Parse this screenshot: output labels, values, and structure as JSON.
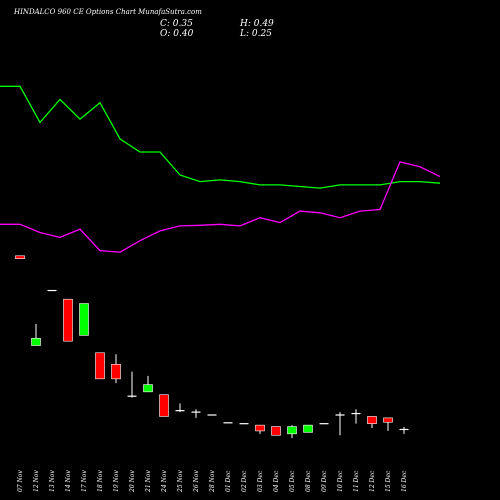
{
  "chart_data": {
    "type": "candlestick",
    "title": "HINDALCO 960 CE Options Chart MunafaSutra.com",
    "stats": {
      "C": "C: 0.35",
      "O": "O: 0.40",
      "H": "H: 0.49",
      "L": "L: 0.25"
    },
    "dates": [
      "07 Nov",
      "12 Nov",
      "13 Nov",
      "14 Nov",
      "17 Nov",
      "18 Nov",
      "19 Nov",
      "20 Nov",
      "21 Nov",
      "24 Nov",
      "25 Nov",
      "26 Nov",
      "28 Nov",
      "01 Dec",
      "02 Dec",
      "03 Dec",
      "04 Dec",
      "05 Dec",
      "08 Dec",
      "09 Dec",
      "10 Dec",
      "11 Dec",
      "12 Dec",
      "15 Dec",
      "16 Dec"
    ],
    "candles": [
      {
        "o": 6.4,
        "h": 6.4,
        "l": 6.3,
        "c": 6.3,
        "color": "red"
      },
      {
        "o": 3.3,
        "h": 4.05,
        "l": 3.3,
        "c": 3.55,
        "color": "green"
      },
      {
        "o": 5.2,
        "h": 5.2,
        "l": 5.2,
        "c": 5.2,
        "color": "green"
      },
      {
        "o": 4.9,
        "h": 4.9,
        "l": 3.45,
        "c": 3.45,
        "color": "red"
      },
      {
        "o": 3.65,
        "h": 4.75,
        "l": 3.65,
        "c": 4.75,
        "color": "green"
      },
      {
        "o": 3.05,
        "h": 3.05,
        "l": 2.15,
        "c": 2.15,
        "color": "red"
      },
      {
        "o": 2.65,
        "h": 3.0,
        "l": 2.0,
        "c": 2.15,
        "color": "red"
      },
      {
        "o": 1.55,
        "h": 2.4,
        "l": 1.5,
        "c": 1.55,
        "color": "red"
      },
      {
        "o": 1.7,
        "h": 2.25,
        "l": 1.7,
        "c": 1.95,
        "color": "green"
      },
      {
        "o": 1.6,
        "h": 1.6,
        "l": 0.85,
        "c": 0.85,
        "color": "red"
      },
      {
        "o": 1.05,
        "h": 1.3,
        "l": 1.0,
        "c": 1.05,
        "color": "red"
      },
      {
        "o": 1.0,
        "h": 1.1,
        "l": 0.8,
        "c": 1.0,
        "color": "green"
      },
      {
        "o": 0.9,
        "h": 0.9,
        "l": 0.9,
        "c": 0.9,
        "color": "green"
      },
      {
        "o": 0.63,
        "h": 0.63,
        "l": 0.63,
        "c": 0.63,
        "color": "green"
      },
      {
        "o": 0.6,
        "h": 0.6,
        "l": 0.6,
        "c": 0.6,
        "color": "green"
      },
      {
        "o": 0.55,
        "h": 0.55,
        "l": 0.25,
        "c": 0.35,
        "color": "red"
      },
      {
        "o": 0.5,
        "h": 0.5,
        "l": 0.2,
        "c": 0.2,
        "color": "red"
      },
      {
        "o": 0.25,
        "h": 0.55,
        "l": 0.1,
        "c": 0.5,
        "color": "green"
      },
      {
        "o": 0.3,
        "h": 0.55,
        "l": 0.3,
        "c": 0.55,
        "color": "green"
      },
      {
        "o": 0.6,
        "h": 0.6,
        "l": 0.6,
        "c": 0.6,
        "color": "green"
      },
      {
        "o": 0.9,
        "h": 1.0,
        "l": 0.2,
        "c": 0.9,
        "color": "green"
      },
      {
        "o": 0.95,
        "h": 1.1,
        "l": 0.6,
        "c": 0.95,
        "color": "green"
      },
      {
        "o": 0.85,
        "h": 0.85,
        "l": 0.45,
        "c": 0.6,
        "color": "red"
      },
      {
        "o": 0.8,
        "h": 0.8,
        "l": 0.35,
        "c": 0.65,
        "color": "red"
      },
      {
        "o": 0.4,
        "h": 0.49,
        "l": 0.25,
        "c": 0.35,
        "color": "red"
      }
    ],
    "price_ylim": [
      -1.0,
      6.6
    ],
    "lines": [
      {
        "color": "#00ff00",
        "values": [
          9.2,
          9.2,
          8.1,
          8.8,
          8.2,
          8.7,
          7.6,
          7.2,
          7.2,
          6.5,
          6.3,
          6.35,
          6.3,
          6.2,
          6.2,
          6.15,
          6.1,
          6.2,
          6.2,
          6.2,
          6.3,
          6.3,
          6.25
        ]
      },
      {
        "color": "#ff00ff",
        "values": [
          5.0,
          5.0,
          4.75,
          4.6,
          4.85,
          4.2,
          4.15,
          4.5,
          4.8,
          4.95,
          4.97,
          5.0,
          4.95,
          5.2,
          5.05,
          5.4,
          5.35,
          5.2,
          5.4,
          5.45,
          6.9,
          6.75,
          6.45
        ]
      }
    ],
    "line_ylim": [
      3.0,
      10.0
    ],
    "colors": {
      "background": "#000000",
      "up": "#00ff00",
      "down": "#ff0000",
      "flat": "#ffffff",
      "text": "#ffffff"
    }
  }
}
